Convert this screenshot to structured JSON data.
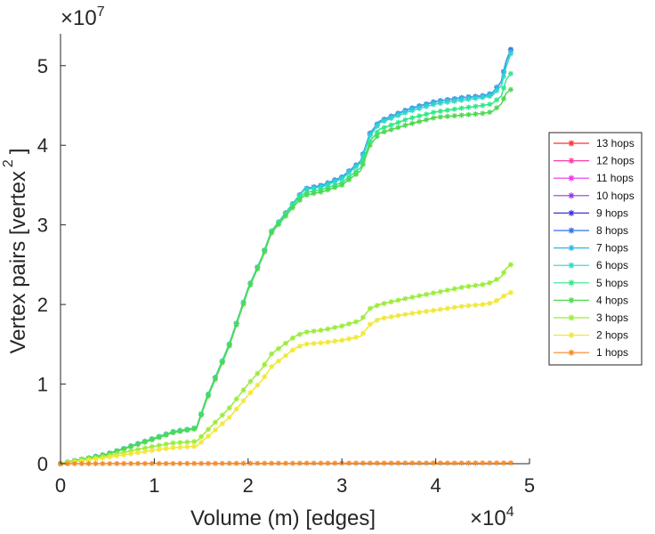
{
  "chart_data": {
    "type": "line",
    "xlabel": "Volume (m) [edges]",
    "ylabel": "Vertex pairs [vertex",
    "ylabel_sup": "2",
    "ylabel_close": "]",
    "x_scale": {
      "base": "×10",
      "exp": "4"
    },
    "y_scale": {
      "base": "×10",
      "exp": "7"
    },
    "xlim": [
      0,
      5
    ],
    "ylim": [
      0,
      5.4
    ],
    "xticks": [
      "0",
      "1",
      "2",
      "3",
      "4",
      "5"
    ],
    "yticks": [
      "0",
      "1",
      "2",
      "3",
      "4",
      "5"
    ],
    "x": [
      0,
      0.5,
      1.0,
      1.2,
      1.45,
      1.55,
      1.8,
      2.0,
      2.15,
      2.25,
      2.5,
      2.6,
      2.8,
      3.0,
      3.2,
      3.3,
      3.4,
      3.7,
      4.0,
      4.3,
      4.5,
      4.6,
      4.7,
      4.75,
      4.8
    ],
    "series": [
      {
        "name": "13 hops",
        "color": "#ff3030",
        "values": [
          0,
          0.12,
          0.32,
          0.4,
          0.45,
          0.8,
          1.5,
          2.2,
          2.6,
          2.92,
          3.3,
          3.45,
          3.5,
          3.6,
          3.8,
          4.15,
          4.3,
          4.45,
          4.55,
          4.6,
          4.62,
          4.65,
          4.8,
          5.05,
          5.2
        ]
      },
      {
        "name": "12 hops",
        "color": "#ff3aa8",
        "values": [
          0,
          0.12,
          0.32,
          0.4,
          0.45,
          0.8,
          1.5,
          2.2,
          2.6,
          2.92,
          3.3,
          3.45,
          3.5,
          3.6,
          3.8,
          4.15,
          4.3,
          4.45,
          4.55,
          4.6,
          4.62,
          4.65,
          4.8,
          5.05,
          5.2
        ]
      },
      {
        "name": "11 hops",
        "color": "#ee30ee",
        "values": [
          0,
          0.12,
          0.32,
          0.4,
          0.45,
          0.8,
          1.5,
          2.2,
          2.6,
          2.92,
          3.3,
          3.45,
          3.5,
          3.6,
          3.8,
          4.15,
          4.3,
          4.45,
          4.55,
          4.6,
          4.62,
          4.65,
          4.8,
          5.05,
          5.2
        ]
      },
      {
        "name": "10 hops",
        "color": "#9a35f0",
        "values": [
          0,
          0.12,
          0.32,
          0.4,
          0.45,
          0.8,
          1.5,
          2.2,
          2.6,
          2.92,
          3.3,
          3.45,
          3.5,
          3.6,
          3.8,
          4.15,
          4.3,
          4.45,
          4.55,
          4.6,
          4.62,
          4.65,
          4.8,
          5.05,
          5.2
        ]
      },
      {
        "name": "9 hops",
        "color": "#3a30e0",
        "values": [
          0,
          0.12,
          0.32,
          0.4,
          0.45,
          0.8,
          1.5,
          2.2,
          2.6,
          2.92,
          3.3,
          3.45,
          3.5,
          3.6,
          3.8,
          4.15,
          4.3,
          4.45,
          4.55,
          4.6,
          4.62,
          4.65,
          4.8,
          5.05,
          5.2
        ]
      },
      {
        "name": "8 hops",
        "color": "#2f6fe8",
        "values": [
          0,
          0.12,
          0.32,
          0.4,
          0.45,
          0.8,
          1.5,
          2.2,
          2.6,
          2.92,
          3.3,
          3.45,
          3.5,
          3.6,
          3.8,
          4.15,
          4.3,
          4.45,
          4.55,
          4.6,
          4.62,
          4.65,
          4.8,
          5.05,
          5.2
        ]
      },
      {
        "name": "7 hops",
        "color": "#2fb5e8",
        "values": [
          0,
          0.12,
          0.32,
          0.4,
          0.45,
          0.8,
          1.5,
          2.2,
          2.6,
          2.92,
          3.3,
          3.45,
          3.5,
          3.6,
          3.8,
          4.15,
          4.3,
          4.45,
          4.55,
          4.6,
          4.62,
          4.65,
          4.8,
          5.05,
          5.18
        ]
      },
      {
        "name": "6 hops",
        "color": "#2fd8c8",
        "values": [
          0,
          0.12,
          0.32,
          0.4,
          0.45,
          0.8,
          1.5,
          2.2,
          2.6,
          2.92,
          3.3,
          3.44,
          3.48,
          3.58,
          3.78,
          4.12,
          4.28,
          4.42,
          4.52,
          4.57,
          4.6,
          4.62,
          4.75,
          4.98,
          5.15
        ]
      },
      {
        "name": "5 hops",
        "color": "#2fe88a",
        "values": [
          0,
          0.12,
          0.32,
          0.4,
          0.45,
          0.8,
          1.5,
          2.2,
          2.6,
          2.92,
          3.28,
          3.4,
          3.45,
          3.53,
          3.72,
          4.05,
          4.2,
          4.33,
          4.42,
          4.47,
          4.5,
          4.52,
          4.62,
          4.82,
          4.9
        ]
      },
      {
        "name": "4 hops",
        "color": "#4fd850",
        "values": [
          0,
          0.12,
          0.31,
          0.39,
          0.44,
          0.78,
          1.48,
          2.18,
          2.58,
          2.9,
          3.25,
          3.37,
          3.42,
          3.5,
          3.68,
          4.0,
          4.15,
          4.26,
          4.35,
          4.38,
          4.4,
          4.42,
          4.52,
          4.65,
          4.7
        ]
      },
      {
        "name": "3 hops",
        "color": "#9aec3a",
        "values": [
          0,
          0.1,
          0.22,
          0.26,
          0.28,
          0.4,
          0.7,
          1.0,
          1.2,
          1.38,
          1.6,
          1.65,
          1.68,
          1.73,
          1.8,
          1.95,
          2.0,
          2.08,
          2.15,
          2.22,
          2.25,
          2.28,
          2.35,
          2.45,
          2.5
        ]
      },
      {
        "name": "2 hops",
        "color": "#f0e838",
        "values": [
          0,
          0.08,
          0.17,
          0.2,
          0.22,
          0.32,
          0.58,
          0.86,
          1.05,
          1.22,
          1.45,
          1.5,
          1.52,
          1.55,
          1.6,
          1.75,
          1.82,
          1.88,
          1.93,
          1.98,
          2.0,
          2.02,
          2.08,
          2.13,
          2.15
        ]
      },
      {
        "name": "1 hops",
        "color": "#f58a28",
        "values": [
          0,
          0.001,
          0.002,
          0.002,
          0.003,
          0.003,
          0.004,
          0.004,
          0.005,
          0.005,
          0.005,
          0.006,
          0.006,
          0.006,
          0.007,
          0.007,
          0.007,
          0.008,
          0.008,
          0.008,
          0.009,
          0.009,
          0.009,
          0.01,
          0.01
        ]
      }
    ],
    "legend_position": "right"
  }
}
